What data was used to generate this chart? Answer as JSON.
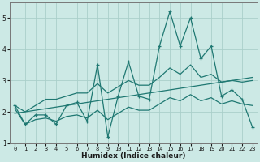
{
  "xlabel": "Humidex (Indice chaleur)",
  "xlim": [
    -0.5,
    23.5
  ],
  "ylim": [
    1.0,
    5.5
  ],
  "yticks": [
    1,
    2,
    3,
    4,
    5
  ],
  "xticks": [
    0,
    1,
    2,
    3,
    4,
    5,
    6,
    7,
    8,
    9,
    10,
    11,
    12,
    13,
    14,
    15,
    16,
    17,
    18,
    19,
    20,
    21,
    22,
    23
  ],
  "line_color": "#1f7872",
  "bg_color": "#cce9e5",
  "grid_color": "#aacfca",
  "main_y": [
    2.2,
    1.6,
    1.9,
    1.9,
    1.6,
    2.2,
    2.3,
    1.7,
    3.5,
    1.2,
    2.5,
    3.6,
    2.5,
    2.4,
    4.1,
    5.2,
    4.1,
    5.0,
    3.7,
    4.1,
    2.5,
    2.7,
    2.4,
    1.5
  ],
  "upper_y": [
    2.2,
    2.0,
    2.2,
    2.4,
    2.4,
    2.5,
    2.6,
    2.6,
    2.9,
    2.6,
    2.8,
    3.0,
    2.85,
    2.85,
    3.1,
    3.4,
    3.2,
    3.5,
    3.1,
    3.2,
    2.95,
    3.0,
    2.95,
    3.0
  ],
  "lower_y": [
    2.1,
    1.6,
    1.75,
    1.8,
    1.7,
    1.85,
    1.9,
    1.8,
    2.05,
    1.75,
    1.95,
    2.15,
    2.05,
    2.05,
    2.25,
    2.45,
    2.35,
    2.55,
    2.35,
    2.45,
    2.25,
    2.35,
    2.25,
    2.2
  ],
  "trend_y": [
    1.95,
    2.0,
    2.05,
    2.1,
    2.15,
    2.2,
    2.25,
    2.3,
    2.35,
    2.4,
    2.45,
    2.5,
    2.55,
    2.6,
    2.65,
    2.7,
    2.75,
    2.8,
    2.85,
    2.9,
    2.95,
    3.0,
    3.05,
    3.1
  ]
}
